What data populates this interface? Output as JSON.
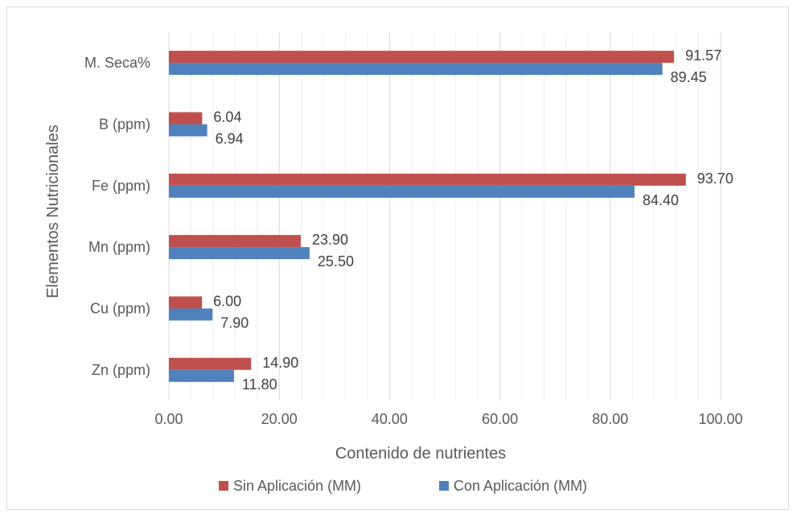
{
  "chart_data": {
    "type": "bar",
    "orientation": "horizontal",
    "categories": [
      "M. Seca%",
      "B (ppm)",
      "Fe (ppm)",
      "Mn (ppm)",
      "Cu (ppm)",
      "Zn (ppm)"
    ],
    "series": [
      {
        "name": "Sin Aplicación (MM)",
        "color": "#C0504D",
        "values": [
          91.57,
          6.04,
          93.7,
          23.9,
          6.0,
          14.9
        ],
        "labels": [
          "91.57",
          "6.04",
          "93.70",
          "23.90",
          "6.00",
          "14.90"
        ]
      },
      {
        "name": "Con Aplicación (MM)",
        "color": "#4F81BD",
        "values": [
          89.45,
          6.94,
          84.4,
          25.5,
          7.9,
          11.8
        ],
        "labels": [
          "89.45",
          "6.94",
          "84.40",
          "25.50",
          "7.90",
          "11.80"
        ]
      }
    ],
    "xlabel": "Contenido de nutrientes",
    "ylabel": "Elementos Nutricionales",
    "xlim": [
      0,
      100
    ],
    "xticks": [
      "0.00",
      "20.00",
      "40.00",
      "60.00",
      "80.00",
      "100.00"
    ],
    "grid": "vertical major and minor",
    "legend_position": "bottom"
  }
}
